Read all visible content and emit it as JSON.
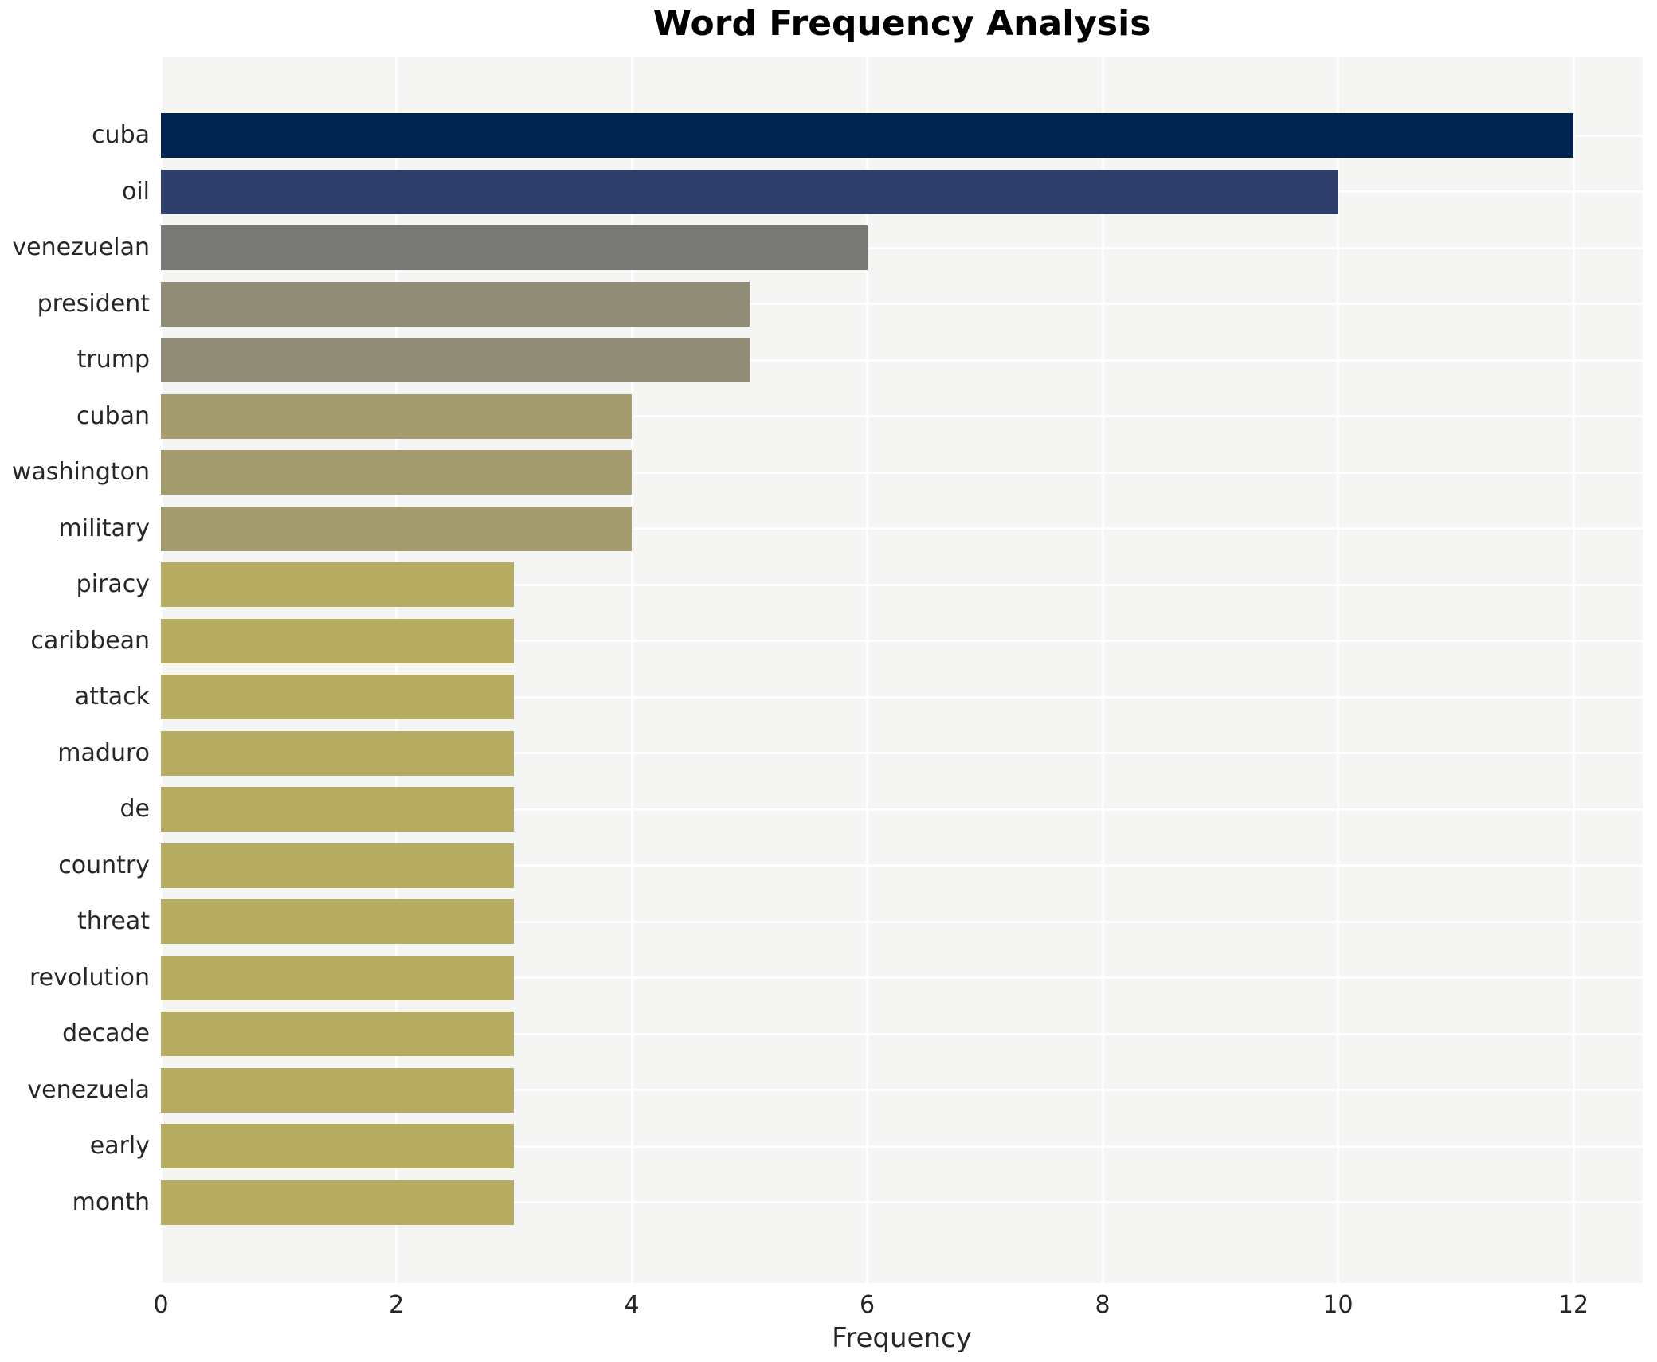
{
  "chart_data": {
    "type": "bar",
    "orientation": "horizontal",
    "title": "Word Frequency Analysis",
    "xlabel": "Frequency",
    "ylabel": "",
    "categories": [
      "cuba",
      "oil",
      "venezuelan",
      "president",
      "trump",
      "cuban",
      "washington",
      "military",
      "piracy",
      "caribbean",
      "attack",
      "maduro",
      "de",
      "country",
      "threat",
      "revolution",
      "decade",
      "venezuela",
      "early",
      "month"
    ],
    "values": [
      12,
      10,
      6,
      5,
      5,
      4,
      4,
      4,
      3,
      3,
      3,
      3,
      3,
      3,
      3,
      3,
      3,
      3,
      3,
      3
    ],
    "bar_colors": [
      "#00234f",
      "#2e3f6c",
      "#787875",
      "#918c75",
      "#918c75",
      "#a49c6f",
      "#a49c6f",
      "#a49c6f",
      "#b5ab61",
      "#b5ab61",
      "#b5ab61",
      "#b5ab61",
      "#b5ab61",
      "#b5ab61",
      "#b5ab61",
      "#b5ab61",
      "#b5ab61",
      "#b5ab61",
      "#b5ab61",
      "#b5ab61"
    ],
    "xticks": [
      0,
      2,
      4,
      6,
      8,
      10,
      12
    ],
    "xlim": [
      0,
      12.59
    ],
    "grid": true,
    "legend": false,
    "colormap": "cividis"
  },
  "colors": {
    "figure_bg": "#ffffff",
    "plot_bg": "#f5f5f3",
    "grid": "#ffffff",
    "tick_text": "#262626",
    "title_text": "#000000"
  }
}
